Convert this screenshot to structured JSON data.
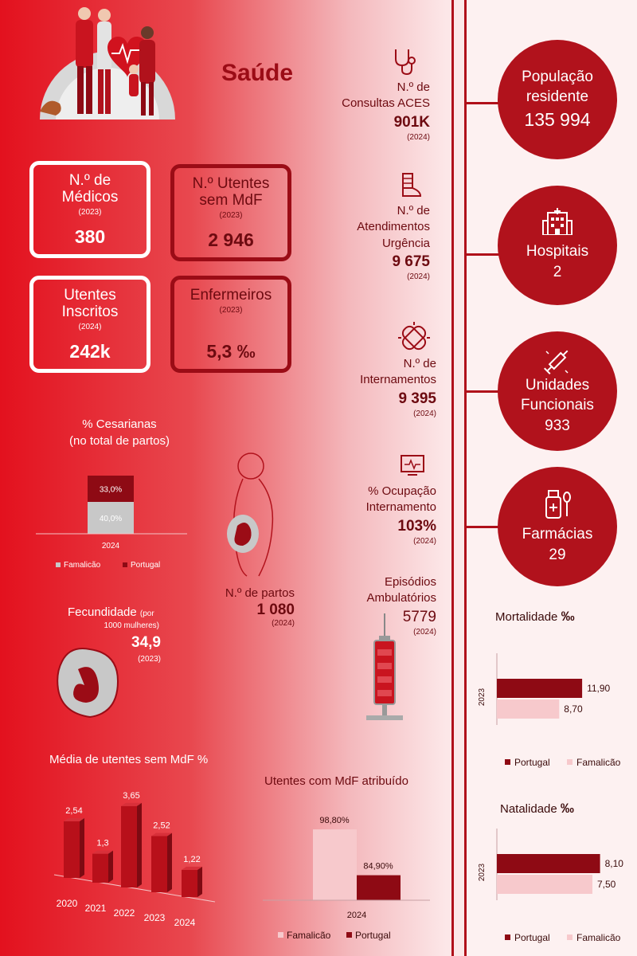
{
  "title": "Saúde",
  "boxes": {
    "medicos": {
      "label1": "N.º de",
      "label2": "Médicos",
      "year": "(2023)",
      "value": "380"
    },
    "utentes_sem_mdf": {
      "label1": "N.º Utentes",
      "label2": "sem MdF",
      "year": "(2023)",
      "value": "2 946"
    },
    "utentes_inscritos": {
      "label1": "Utentes",
      "label2": "Inscritos",
      "year": "(2024)",
      "value": "242k"
    },
    "enfermeiros": {
      "label1": "Enfermeiros",
      "year": "(2023)",
      "value": "5,3 ‰"
    }
  },
  "mid_stats": {
    "consultas": {
      "label1": "N.º de",
      "label2": "Consultas ACES",
      "value": "901K",
      "year": "(2024)"
    },
    "urgencia": {
      "label1": "N.º de",
      "label2": "Atendimentos",
      "label3": "Urgência",
      "value": "9 675",
      "year": "(2024)"
    },
    "internamentos": {
      "label1": "N.º de",
      "label2": "Internamentos",
      "value": "9 395",
      "year": "(2024)"
    },
    "ocupacao": {
      "label1": "% Ocupação",
      "label2": "Internamento",
      "value": "103%",
      "year": "(2024)"
    },
    "ambulatorios": {
      "label1": "Episódios",
      "label2": "Ambulatórios",
      "value": "5779",
      "year": "(2024)"
    }
  },
  "circles": {
    "populacao": {
      "label1": "População",
      "label2": "residente",
      "value": "135 994"
    },
    "hospitais": {
      "label": "Hospitais",
      "value": "2"
    },
    "unidades": {
      "label1": "Unidades",
      "label2": "Funcionais",
      "value": "933"
    },
    "farmacias": {
      "label": "Farmácias",
      "value": "29"
    }
  },
  "partos": {
    "label": "N.º de partos",
    "value": "1 080",
    "year": "(2024)"
  },
  "fecundidade": {
    "label": "Fecundidade",
    "label_small": "(por",
    "label_small2": "1000 mulheres)",
    "value": "34,9",
    "year": "(2023)"
  },
  "cesarianas": {
    "title1": "% Cesarianas",
    "title2": "(no total de partos)",
    "chart_data": {
      "type": "bar",
      "categories": [
        "2024"
      ],
      "series": [
        {
          "name": "Famalicão",
          "values": [
            40.0
          ],
          "label": "40,0%"
        },
        {
          "name": "Portugal",
          "values": [
            33.0
          ],
          "label": "33,0%"
        }
      ]
    },
    "legend": [
      "Famalicão",
      "Portugal"
    ],
    "colors": {
      "famalicao": "#c8c8c8",
      "portugal": "#8e0a14"
    }
  },
  "media_utentes": {
    "title": "Média de utentes sem MdF %",
    "chart_data": {
      "type": "bar",
      "categories": [
        "2020",
        "2021",
        "2022",
        "2023",
        "2024"
      ],
      "values": [
        2.54,
        1.3,
        3.65,
        2.52,
        1.22
      ],
      "labels": [
        "2,54",
        "1,3",
        "3,65",
        "2,52",
        "1,22"
      ]
    }
  },
  "utentes_mdf": {
    "title": "Utentes com MdF atribuído",
    "chart_data": {
      "type": "bar",
      "categories": [
        "2024"
      ],
      "series": [
        {
          "name": "Famalicão",
          "values": [
            98.8
          ],
          "label": "98,80%"
        },
        {
          "name": "Portugal",
          "values": [
            84.9
          ],
          "label": "84,90%"
        }
      ]
    },
    "legend": [
      "Famalicão",
      "Portugal"
    ]
  },
  "mortalidade": {
    "title": "Mortalidade",
    "unit": "‰",
    "year": "2023",
    "chart_data": {
      "type": "bar",
      "categories": [
        "2023"
      ],
      "series": [
        {
          "name": "Portugal",
          "values": [
            11.9
          ],
          "label": "11,90"
        },
        {
          "name": "Famalicão",
          "values": [
            8.7
          ],
          "label": "8,70"
        }
      ]
    },
    "legend": [
      "Portugal",
      "Famalicão"
    ]
  },
  "natalidade": {
    "title": "Natalidade",
    "unit": "‰",
    "year": "2023",
    "chart_data": {
      "type": "bar",
      "categories": [
        "2023"
      ],
      "series": [
        {
          "name": "Portugal",
          "values": [
            8.1
          ],
          "label": "8,10"
        },
        {
          "name": "Famalicão",
          "values": [
            7.5
          ],
          "label": "7,50"
        }
      ]
    },
    "legend": [
      "Portugal",
      "Famalicão"
    ]
  }
}
